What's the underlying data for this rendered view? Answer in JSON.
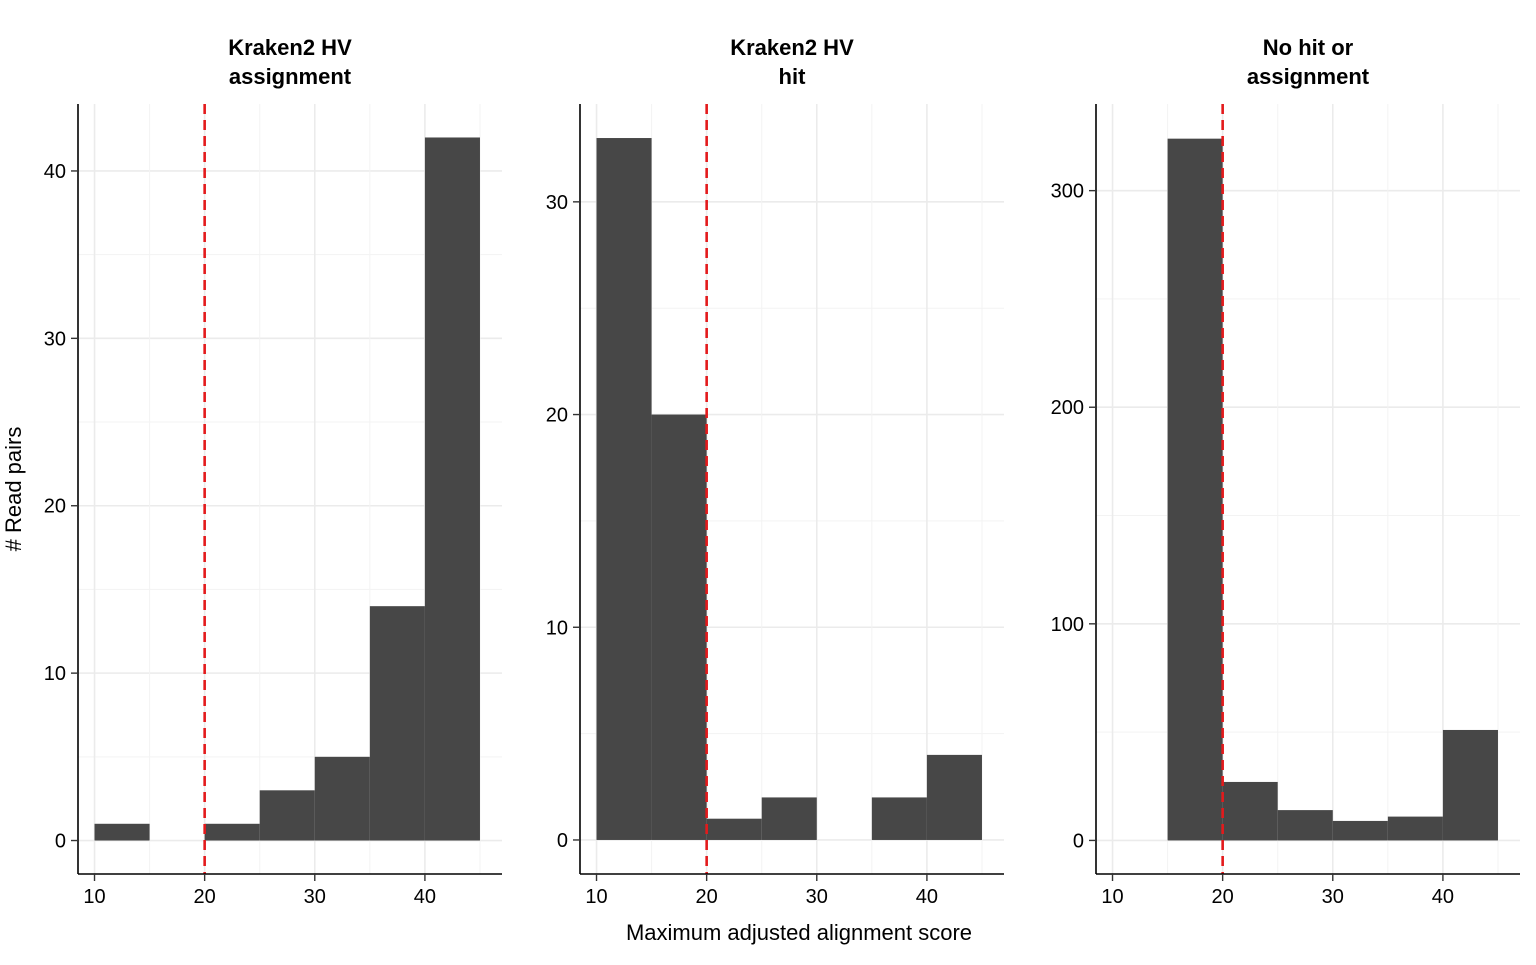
{
  "chart_data": {
    "type": "bar",
    "xlabel": "Maximum adjusted alignment score",
    "ylabel": "# Read pairs",
    "x_ticks": [
      10,
      20,
      30,
      40
    ],
    "xlim": [
      8.5,
      47
    ],
    "bin_width": 5,
    "threshold": 20,
    "threshold_color": "#e31a1c",
    "bar_color": "#474747",
    "grid": true,
    "facets": [
      {
        "title_lines": [
          "Kraken2 HV",
          "assignment"
        ],
        "ylim": [
          -2,
          44
        ],
        "y_ticks": [
          0,
          10,
          20,
          30,
          40
        ],
        "bins": [
          {
            "start": 10,
            "end": 15,
            "count": 1
          },
          {
            "start": 20,
            "end": 25,
            "count": 1
          },
          {
            "start": 25,
            "end": 30,
            "count": 3
          },
          {
            "start": 30,
            "end": 35,
            "count": 5
          },
          {
            "start": 35,
            "end": 40,
            "count": 14
          },
          {
            "start": 40,
            "end": 45,
            "count": 42
          }
        ]
      },
      {
        "title_lines": [
          "Kraken2 HV",
          "hit"
        ],
        "ylim": [
          -1.6,
          34.6
        ],
        "y_ticks": [
          0,
          10,
          20,
          30
        ],
        "bins": [
          {
            "start": 10,
            "end": 15,
            "count": 33
          },
          {
            "start": 15,
            "end": 20,
            "count": 20
          },
          {
            "start": 20,
            "end": 25,
            "count": 1
          },
          {
            "start": 25,
            "end": 30,
            "count": 2
          },
          {
            "start": 35,
            "end": 40,
            "count": 2
          },
          {
            "start": 40,
            "end": 45,
            "count": 4
          }
        ]
      },
      {
        "title_lines": [
          "No hit or",
          "assignment"
        ],
        "ylim": [
          -15.5,
          340
        ],
        "y_ticks": [
          0,
          100,
          200,
          300
        ],
        "bins": [
          {
            "start": 15,
            "end": 20,
            "count": 324
          },
          {
            "start": 20,
            "end": 25,
            "count": 27
          },
          {
            "start": 25,
            "end": 30,
            "count": 14
          },
          {
            "start": 30,
            "end": 35,
            "count": 9
          },
          {
            "start": 35,
            "end": 40,
            "count": 11
          },
          {
            "start": 40,
            "end": 45,
            "count": 51
          }
        ]
      }
    ]
  }
}
